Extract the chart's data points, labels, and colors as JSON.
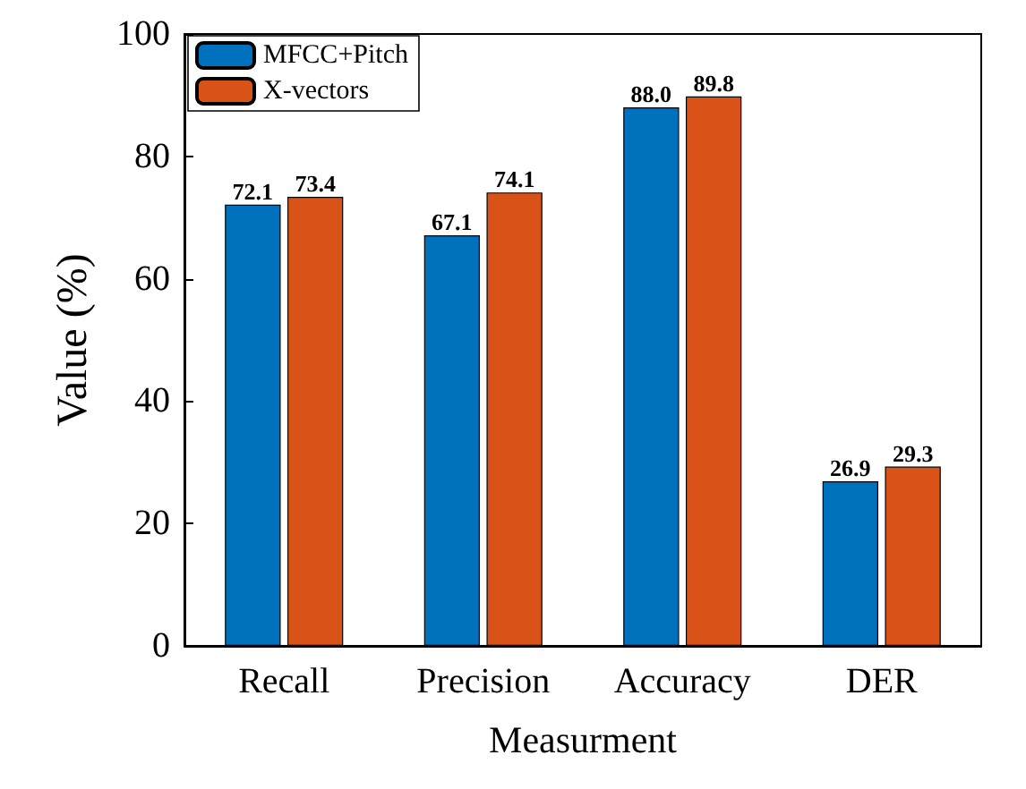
{
  "chart_data": {
    "type": "bar",
    "xlabel": "Measurment",
    "ylabel": "Value (%)",
    "categories": [
      "Recall",
      "Precision",
      "Accuracy",
      "DER"
    ],
    "series": [
      {
        "name": "MFCC+Pitch",
        "color": "#0072bd",
        "values": [
          72.1,
          67.1,
          88.0,
          26.9
        ],
        "value_labels": [
          "72.1",
          "67.1",
          "88.0",
          "26.9"
        ]
      },
      {
        "name": "X-vectors",
        "color": "#d95319",
        "values": [
          73.4,
          74.1,
          89.8,
          29.3
        ],
        "value_labels": [
          "73.4",
          "74.1",
          "89.8",
          "29.3"
        ]
      }
    ],
    "ylim": [
      0,
      100
    ],
    "yticks": [
      0,
      20,
      40,
      60,
      80,
      100
    ],
    "legend": "top left",
    "grid": false
  }
}
